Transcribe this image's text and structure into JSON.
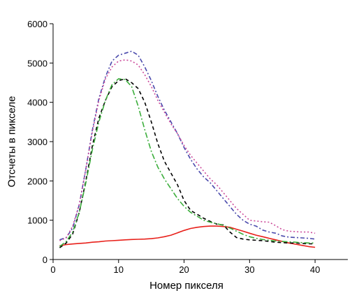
{
  "chart_data": {
    "type": "line",
    "xlabel": "Номер пикселя",
    "ylabel": "Отсчеты в пикселе",
    "xlim": [
      0,
      45
    ],
    "ylim": [
      0,
      6000
    ],
    "xticks": [
      0,
      10,
      20,
      30,
      40
    ],
    "yticks": [
      0,
      1000,
      2000,
      3000,
      4000,
      5000,
      6000
    ],
    "grid": false,
    "legend": "none",
    "series": [
      {
        "color": "#e8201a",
        "dash": "solid",
        "x": [
          1,
          2,
          3,
          4,
          5,
          6,
          7,
          8,
          9,
          10,
          11,
          12,
          13,
          14,
          15,
          16,
          17,
          18,
          19,
          20,
          21,
          22,
          23,
          24,
          25,
          26,
          27,
          28,
          29,
          30,
          31,
          32,
          33,
          34,
          35,
          36,
          37,
          38,
          39,
          40
        ],
        "y": [
          350,
          380,
          395,
          410,
          420,
          440,
          450,
          470,
          480,
          490,
          500,
          510,
          515,
          520,
          530,
          550,
          580,
          620,
          680,
          740,
          790,
          820,
          840,
          850,
          850,
          840,
          820,
          770,
          720,
          670,
          620,
          580,
          540,
          500,
          460,
          420,
          390,
          360,
          330,
          310
        ]
      },
      {
        "color": "#000000",
        "dash": "5,4",
        "x": [
          1,
          2,
          3,
          4,
          5,
          6,
          7,
          8,
          9,
          10,
          11,
          12,
          13,
          14,
          15,
          16,
          17,
          18,
          19,
          20,
          21,
          22,
          23,
          24,
          25,
          26,
          27,
          28,
          29,
          30,
          31,
          32,
          33,
          34,
          35,
          36,
          37,
          38,
          39,
          40
        ],
        "y": [
          300,
          420,
          650,
          1200,
          2000,
          2900,
          3600,
          4050,
          4400,
          4550,
          4600,
          4500,
          4350,
          4000,
          3500,
          2950,
          2500,
          2200,
          1900,
          1500,
          1250,
          1150,
          1050,
          970,
          900,
          880,
          700,
          560,
          520,
          500,
          490,
          480,
          460,
          440,
          430,
          420,
          420,
          410,
          400,
          400
        ]
      },
      {
        "color": "#3cae3c",
        "dash": "8,3,2,3",
        "x": [
          1,
          2,
          3,
          4,
          5,
          6,
          7,
          8,
          9,
          10,
          11,
          12,
          13,
          14,
          15,
          16,
          17,
          18,
          19,
          20,
          21,
          22,
          23,
          24,
          25,
          26,
          27,
          28,
          29,
          30,
          31,
          32,
          33,
          34,
          35,
          36,
          37,
          38,
          39,
          40
        ],
        "y": [
          330,
          460,
          700,
          1200,
          1950,
          2800,
          3500,
          4050,
          4450,
          4600,
          4580,
          4400,
          3900,
          3300,
          2750,
          2350,
          2050,
          1800,
          1550,
          1350,
          1200,
          1100,
          1000,
          950,
          910,
          870,
          800,
          720,
          640,
          580,
          540,
          510,
          490,
          470,
          460,
          450,
          440,
          430,
          420,
          420
        ]
      },
      {
        "color": "#4a4aac",
        "dash": "6,3,2,3",
        "x": [
          1,
          2,
          3,
          4,
          5,
          6,
          7,
          8,
          9,
          10,
          11,
          12,
          13,
          14,
          15,
          16,
          17,
          18,
          19,
          20,
          21,
          22,
          23,
          24,
          25,
          26,
          27,
          28,
          29,
          30,
          31,
          32,
          33,
          34,
          35,
          36,
          37,
          38,
          39,
          40
        ],
        "y": [
          500,
          560,
          800,
          1400,
          2300,
          3300,
          4100,
          4650,
          5050,
          5200,
          5250,
          5300,
          5200,
          4900,
          4550,
          4150,
          3800,
          3500,
          3200,
          2850,
          2550,
          2300,
          2100,
          1950,
          1750,
          1550,
          1350,
          1150,
          1000,
          900,
          850,
          750,
          700,
          670,
          600,
          570,
          560,
          550,
          540,
          520
        ]
      },
      {
        "color": "#cc4a9a",
        "dash": "2,3",
        "x": [
          1,
          2,
          3,
          4,
          5,
          6,
          7,
          8,
          9,
          10,
          11,
          12,
          13,
          14,
          15,
          16,
          17,
          18,
          19,
          20,
          21,
          22,
          23,
          24,
          25,
          26,
          27,
          28,
          29,
          30,
          31,
          32,
          33,
          34,
          35,
          36,
          37,
          38,
          39,
          40
        ],
        "y": [
          480,
          550,
          850,
          1400,
          2300,
          3250,
          4050,
          4600,
          4900,
          5050,
          5080,
          5050,
          4950,
          4700,
          4400,
          4050,
          3750,
          3450,
          3200,
          2900,
          2650,
          2450,
          2250,
          2050,
          1900,
          1700,
          1500,
          1300,
          1150,
          1000,
          980,
          960,
          950,
          860,
          760,
          720,
          710,
          700,
          700,
          670
        ]
      }
    ]
  }
}
